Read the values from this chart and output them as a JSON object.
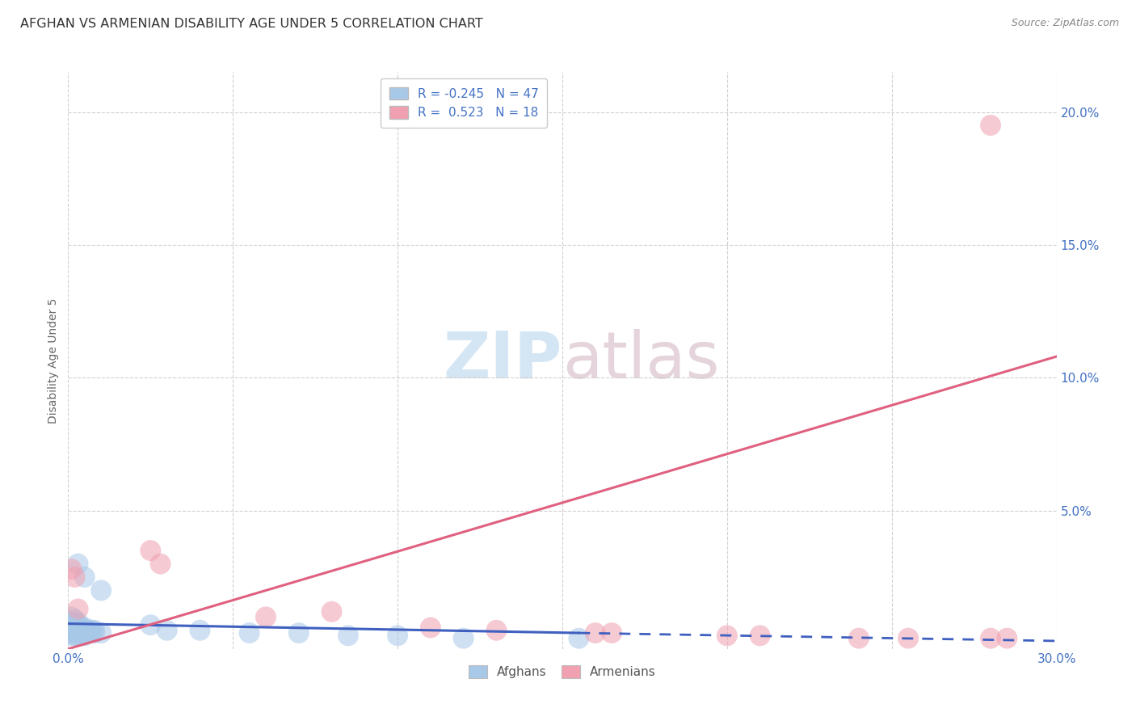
{
  "title": "AFGHAN VS ARMENIAN DISABILITY AGE UNDER 5 CORRELATION CHART",
  "source": "Source: ZipAtlas.com",
  "ylabel": "Disability Age Under 5",
  "xlim": [
    0.0,
    0.3
  ],
  "ylim": [
    -0.002,
    0.215
  ],
  "grid_color": "#d0d0d0",
  "background_color": "#ffffff",
  "afghan_color": "#a8c8e8",
  "armenian_color": "#f0a0b0",
  "afghan_line_color": "#4060c0",
  "armenian_line_color": "#e06080",
  "legend_R_afghan": "-0.245",
  "legend_N_afghan": "47",
  "legend_R_armenian": "0.523",
  "legend_N_armenian": "18",
  "watermark_zip": "ZIP",
  "watermark_atlas": "atlas",
  "tick_color": "#4472c4",
  "afghan_points": [
    [
      0.001,
      0.005
    ],
    [
      0.001,
      0.006
    ],
    [
      0.001,
      0.007
    ],
    [
      0.001,
      0.004
    ],
    [
      0.002,
      0.005
    ],
    [
      0.002,
      0.006
    ],
    [
      0.002,
      0.004
    ],
    [
      0.002,
      0.007
    ],
    [
      0.002,
      0.008
    ],
    [
      0.003,
      0.005
    ],
    [
      0.003,
      0.006
    ],
    [
      0.003,
      0.004
    ],
    [
      0.003,
      0.007
    ],
    [
      0.004,
      0.005
    ],
    [
      0.004,
      0.006
    ],
    [
      0.004,
      0.004
    ],
    [
      0.005,
      0.005
    ],
    [
      0.005,
      0.006
    ],
    [
      0.005,
      0.004
    ],
    [
      0.006,
      0.005
    ],
    [
      0.001,
      0.003
    ],
    [
      0.002,
      0.003
    ],
    [
      0.003,
      0.003
    ],
    [
      0.001,
      0.008
    ],
    [
      0.002,
      0.009
    ],
    [
      0.001,
      0.01
    ],
    [
      0.003,
      0.008
    ],
    [
      0.004,
      0.003
    ],
    [
      0.005,
      0.003
    ],
    [
      0.006,
      0.004
    ],
    [
      0.007,
      0.005
    ],
    [
      0.007,
      0.004
    ],
    [
      0.008,
      0.005
    ],
    [
      0.008,
      0.004
    ],
    [
      0.01,
      0.004
    ],
    [
      0.025,
      0.007
    ],
    [
      0.03,
      0.005
    ],
    [
      0.04,
      0.005
    ],
    [
      0.055,
      0.004
    ],
    [
      0.07,
      0.004
    ],
    [
      0.085,
      0.003
    ],
    [
      0.1,
      0.003
    ],
    [
      0.12,
      0.002
    ],
    [
      0.155,
      0.002
    ],
    [
      0.003,
      0.03
    ],
    [
      0.005,
      0.025
    ],
    [
      0.01,
      0.02
    ]
  ],
  "armenian_points": [
    [
      0.001,
      0.028
    ],
    [
      0.002,
      0.025
    ],
    [
      0.003,
      0.013
    ],
    [
      0.025,
      0.035
    ],
    [
      0.028,
      0.03
    ],
    [
      0.06,
      0.01
    ],
    [
      0.08,
      0.012
    ],
    [
      0.11,
      0.006
    ],
    [
      0.13,
      0.005
    ],
    [
      0.16,
      0.004
    ],
    [
      0.165,
      0.004
    ],
    [
      0.2,
      0.003
    ],
    [
      0.21,
      0.003
    ],
    [
      0.24,
      0.002
    ],
    [
      0.255,
      0.002
    ],
    [
      0.28,
      0.002
    ],
    [
      0.285,
      0.002
    ],
    [
      0.28,
      0.195
    ]
  ],
  "afghan_line": {
    "x0": 0.0,
    "y0": 0.0075,
    "x1": 0.155,
    "y1": 0.004,
    "x2": 0.3,
    "y2": 0.001
  },
  "armenian_line": {
    "x0": 0.0,
    "y0": -0.002,
    "x1": 0.3,
    "y1": 0.108
  }
}
